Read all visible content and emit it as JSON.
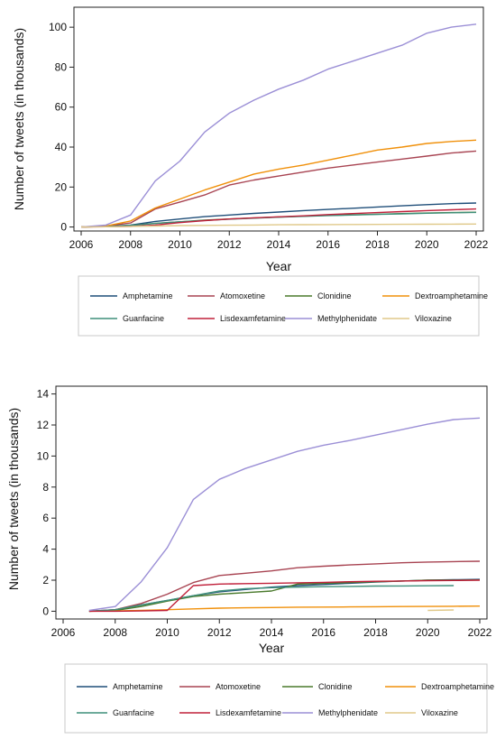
{
  "chart_data": [
    {
      "type": "line",
      "title": "",
      "xlabel": "Year",
      "ylabel": "Number of tweets (in thousands)",
      "xlim": [
        2006,
        2022
      ],
      "ylim": [
        -2,
        110
      ],
      "xticks": [
        2006,
        2008,
        2010,
        2012,
        2014,
        2016,
        2018,
        2020,
        2022
      ],
      "yticks": [
        0,
        20,
        40,
        60,
        80,
        100
      ],
      "grid": false,
      "legend_position": "bottom",
      "series": [
        {
          "name": "Amphetamine",
          "color": "#1f4e79",
          "x": [
            2006,
            2007,
            2008,
            2009,
            2010,
            2011,
            2012,
            2013,
            2014,
            2015,
            2016,
            2017,
            2018,
            2019,
            2020,
            2021,
            2022
          ],
          "y": [
            0,
            0.3,
            1,
            2.8,
            4,
            5.2,
            6,
            6.8,
            7.5,
            8.2,
            8.8,
            9.4,
            10,
            10.6,
            11.2,
            11.7,
            12
          ]
        },
        {
          "name": "Atomoxetine",
          "color": "#a84452",
          "x": [
            2006,
            2007,
            2008,
            2009,
            2010,
            2011,
            2012,
            2013,
            2014,
            2015,
            2016,
            2017,
            2018,
            2019,
            2020,
            2021,
            2022
          ],
          "y": [
            0,
            0.5,
            2,
            9,
            12.5,
            16,
            21,
            23.5,
            25.5,
            27.5,
            29.5,
            31,
            32.5,
            34,
            35.5,
            37,
            38
          ]
        },
        {
          "name": "Clonidine",
          "color": "#4a7a2c",
          "x": [
            2006,
            2007,
            2008,
            2009,
            2010,
            2011,
            2012,
            2013,
            2014,
            2015,
            2016,
            2017,
            2018,
            2019,
            2020,
            2021,
            2022
          ],
          "y": [
            0,
            0.2,
            0.8,
            1.8,
            2.6,
            3.4,
            4,
            4.5,
            5,
            5.4,
            5.8,
            6.1,
            6.4,
            6.7,
            7,
            7.2,
            7.4
          ]
        },
        {
          "name": "Dextroamphetamine",
          "color": "#f0900a",
          "x": [
            2006,
            2007,
            2008,
            2009,
            2010,
            2011,
            2012,
            2013,
            2014,
            2015,
            2016,
            2017,
            2018,
            2019,
            2020,
            2021,
            2022
          ],
          "y": [
            0,
            0.5,
            3,
            9.5,
            14,
            18.5,
            22.5,
            26.5,
            29,
            31,
            33.5,
            36,
            38.5,
            40,
            41.8,
            42.8,
            43.5
          ]
        },
        {
          "name": "Guanfacine",
          "color": "#3f8f7a",
          "x": [
            2006,
            2007,
            2008,
            2009,
            2010,
            2011,
            2012,
            2013,
            2014,
            2015,
            2016,
            2017,
            2018,
            2019,
            2020,
            2021,
            2022
          ],
          "y": [
            0,
            0.2,
            0.8,
            1.8,
            2.6,
            3.3,
            3.9,
            4.4,
            4.9,
            5.3,
            5.7,
            6,
            6.3,
            6.6,
            6.9,
            7.1,
            7.3
          ]
        },
        {
          "name": "Lisdexamfetamine",
          "color": "#c0203a",
          "x": [
            2006,
            2007,
            2008,
            2009,
            2010,
            2011,
            2012,
            2013,
            2014,
            2015,
            2016,
            2017,
            2018,
            2019,
            2020,
            2021,
            2022
          ],
          "y": [
            0,
            0.1,
            0.3,
            1,
            2.2,
            3.2,
            4,
            4.6,
            5.1,
            5.6,
            6.2,
            6.7,
            7.2,
            7.7,
            8.2,
            8.6,
            9
          ]
        },
        {
          "name": "Methylphenidate",
          "color": "#9b8fd6",
          "x": [
            2006,
            2007,
            2008,
            2009,
            2010,
            2011,
            2012,
            2013,
            2014,
            2015,
            2016,
            2017,
            2018,
            2019,
            2020,
            2021,
            2022
          ],
          "y": [
            0,
            1,
            6,
            23,
            33,
            47.5,
            57,
            63.5,
            69,
            73.5,
            79,
            83,
            87,
            91,
            97,
            100,
            101.5
          ]
        },
        {
          "name": "Viloxazine",
          "color": "#e0c98a",
          "x": [
            2006,
            2007,
            2008,
            2009,
            2010,
            2011,
            2012,
            2013,
            2014,
            2015,
            2016,
            2017,
            2018,
            2019,
            2020,
            2021,
            2022
          ],
          "y": [
            0,
            0.1,
            0.3,
            0.5,
            0.7,
            0.8,
            0.9,
            1,
            1.1,
            1.15,
            1.2,
            1.25,
            1.3,
            1.35,
            1.4,
            1.45,
            1.5
          ]
        }
      ]
    },
    {
      "type": "line",
      "title": "",
      "xlabel": "Year",
      "ylabel": "Number of tweets (in thousands)",
      "xlim": [
        2006,
        2022
      ],
      "ylim": [
        -0.5,
        14.5
      ],
      "xticks": [
        2006,
        2008,
        2010,
        2012,
        2014,
        2016,
        2018,
        2020,
        2022
      ],
      "yticks": [
        0,
        2,
        4,
        6,
        8,
        10,
        12,
        14
      ],
      "grid": false,
      "legend_position": "bottom",
      "series": [
        {
          "name": "Amphetamine",
          "color": "#1f4e79",
          "x": [
            2007,
            2008,
            2009,
            2010,
            2011,
            2012,
            2013,
            2014,
            2015,
            2016,
            2017,
            2018,
            2019,
            2020,
            2021,
            2022
          ],
          "y": [
            0,
            0.1,
            0.4,
            0.7,
            1.0,
            1.25,
            1.4,
            1.55,
            1.65,
            1.72,
            1.8,
            1.88,
            1.95,
            2.0,
            2.03,
            2.05
          ]
        },
        {
          "name": "Atomoxetine",
          "color": "#a84452",
          "x": [
            2007,
            2008,
            2009,
            2010,
            2011,
            2012,
            2013,
            2014,
            2015,
            2016,
            2017,
            2018,
            2019,
            2020,
            2021,
            2022
          ],
          "y": [
            0,
            0.1,
            0.5,
            1.1,
            1.85,
            2.3,
            2.45,
            2.6,
            2.8,
            2.9,
            2.98,
            3.05,
            3.12,
            3.17,
            3.2,
            3.22
          ]
        },
        {
          "name": "Clonidine",
          "color": "#4a7a2c",
          "x": [
            2007,
            2008,
            2009,
            2010,
            2011,
            2012,
            2013,
            2014,
            2015,
            2016,
            2017,
            2018,
            2019,
            2020,
            2021,
            2022
          ],
          "y": [
            0,
            0.05,
            0.3,
            0.65,
            0.95,
            1.1,
            1.2,
            1.3,
            1.75,
            1.8,
            1.85,
            1.9,
            1.95,
            2.0,
            2.0,
            2.02
          ]
        },
        {
          "name": "Dextroamphetamine",
          "color": "#f0900a",
          "x": [
            2007,
            2008,
            2009,
            2010,
            2011,
            2012,
            2013,
            2014,
            2015,
            2016,
            2017,
            2018,
            2019,
            2020,
            2021,
            2022
          ],
          "y": [
            0,
            0.02,
            0.06,
            0.1,
            0.15,
            0.2,
            0.22,
            0.24,
            0.26,
            0.27,
            0.28,
            0.29,
            0.3,
            0.31,
            0.32,
            0.33
          ]
        },
        {
          "name": "Guanfacine",
          "color": "#3f8f7a",
          "x": [
            2007,
            2008,
            2009,
            2010,
            2011,
            2012,
            2013,
            2014,
            2015,
            2016,
            2017,
            2018,
            2019,
            2020,
            2021
          ],
          "y": [
            0,
            0.1,
            0.4,
            0.7,
            1.0,
            1.3,
            1.45,
            1.52,
            1.55,
            1.58,
            1.6,
            1.62,
            1.63,
            1.64,
            1.65
          ]
        },
        {
          "name": "Lisdexamfetamine",
          "color": "#c0203a",
          "x": [
            2007,
            2008,
            2009,
            2010,
            2011,
            2012,
            2013,
            2014,
            2015,
            2016,
            2017,
            2018,
            2019,
            2020,
            2021,
            2022
          ],
          "y": [
            0,
            0,
            0.02,
            0.05,
            1.65,
            1.75,
            1.78,
            1.8,
            1.83,
            1.86,
            1.9,
            1.93,
            1.95,
            1.97,
            1.98,
            2.0
          ]
        },
        {
          "name": "Methylphenidate",
          "color": "#9b8fd6",
          "x": [
            2007,
            2008,
            2009,
            2010,
            2011,
            2012,
            2013,
            2014,
            2015,
            2016,
            2017,
            2018,
            2019,
            2020,
            2021,
            2022
          ],
          "y": [
            0.05,
            0.3,
            1.9,
            4.1,
            7.2,
            8.5,
            9.2,
            9.75,
            10.3,
            10.7,
            11.0,
            11.35,
            11.7,
            12.05,
            12.35,
            12.45
          ]
        },
        {
          "name": "Viloxazine",
          "color": "#e0c98a",
          "x": [
            2020,
            2021
          ],
          "y": [
            0.05,
            0.08
          ]
        }
      ]
    }
  ]
}
